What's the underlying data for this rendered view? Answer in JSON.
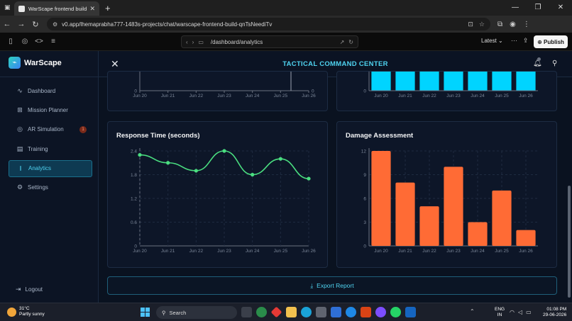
{
  "browser": {
    "tab_title": "WarScape frontend build - v0 b...",
    "tab_close": "✕",
    "new_tab": "+",
    "url": "v0.app/lhemaprabha777-1483s-projects/chat/warscape-frontend-build-qnTsNeediTv",
    "preview_path": "/dashboard/analytics",
    "version_select": "Latest",
    "publish_label": "Publish"
  },
  "app": {
    "brand": "WarScape",
    "header_title": "TACTICAL COMMAND CENTER",
    "sidebar": {
      "items": [
        {
          "label": "Dashboard",
          "icon": "activity-icon"
        },
        {
          "label": "Mission Planner",
          "icon": "map-icon"
        },
        {
          "label": "AR Simulation",
          "icon": "target-icon",
          "badge": "1"
        },
        {
          "label": "Training",
          "icon": "book-icon"
        },
        {
          "label": "Analytics",
          "icon": "chart-icon",
          "active": true
        },
        {
          "label": "Settings",
          "icon": "gear-icon"
        }
      ],
      "logout_label": "Logout"
    },
    "export_label": "Export Report"
  },
  "chart_data": [
    {
      "type": "line",
      "title": "",
      "x": [
        "Jun 20",
        "Jun 21",
        "Jun 22",
        "Jun 23",
        "Jun 24",
        "Jun 25",
        "Jun 26"
      ],
      "yticks": [
        "0"
      ],
      "note": "partially visible upper chart"
    },
    {
      "type": "bar",
      "title": "",
      "categories": [
        "Jun 20",
        "Jun 21",
        "Jun 22",
        "Jun 23",
        "Jun 24",
        "Jun 25",
        "Jun 26"
      ],
      "yticks": [
        "0"
      ],
      "color": "#00d4ff"
    },
    {
      "type": "line",
      "title": "Response Time (seconds)",
      "x": [
        "Jun 20",
        "Jun 21",
        "Jun 22",
        "Jun 23",
        "Jun 24",
        "Jun 25",
        "Jun 26"
      ],
      "values": [
        2.3,
        2.1,
        1.9,
        2.4,
        1.8,
        2.2,
        1.7
      ],
      "ylim": [
        0,
        2.4
      ],
      "yticks": [
        "0",
        "0.6",
        "1.2",
        "1.8",
        "2.4"
      ],
      "color": "#4ade80",
      "grid": true
    },
    {
      "type": "bar",
      "title": "Damage Assessment",
      "categories": [
        "Jun 20",
        "Jun 21",
        "Jun 22",
        "Jun 23",
        "Jun 24",
        "Jun 25",
        "Jun 26"
      ],
      "values": [
        12,
        8,
        5,
        10,
        3,
        7,
        2
      ],
      "ylim": [
        0,
        12
      ],
      "yticks": [
        "0",
        "3",
        "6",
        "9",
        "12"
      ],
      "color": "#ff6b35",
      "grid": true
    }
  ],
  "taskbar": {
    "temp": "31°C",
    "weather": "Partly sunny",
    "search_label": "Search",
    "lang_top": "ENG",
    "lang_bottom": "IN",
    "time": "01:08 PM",
    "date": "29-06-2026"
  }
}
